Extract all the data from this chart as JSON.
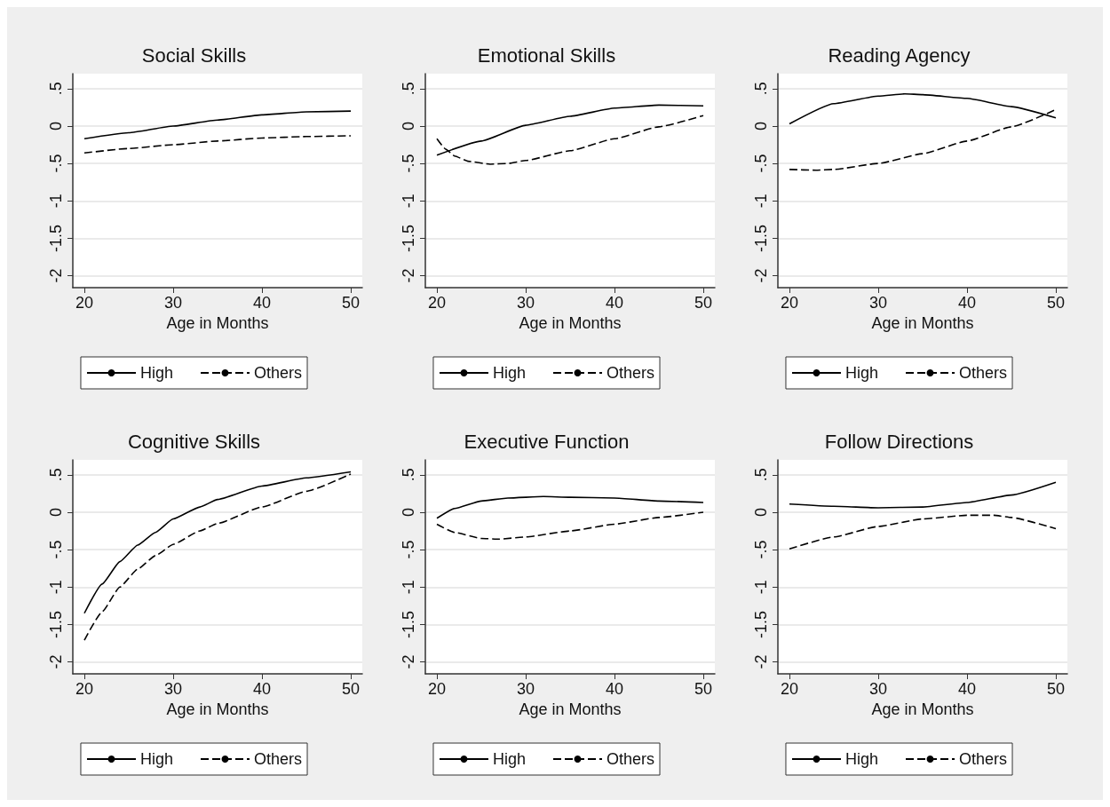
{
  "chart_data": [
    {
      "type": "line",
      "title": "Social Skills",
      "xlabel": "Age in Months",
      "xlim": [
        18.7,
        51.3
      ],
      "xticks": [
        20,
        30,
        40,
        50
      ],
      "ylim": [
        -2.16,
        0.7
      ],
      "yticks": [
        {
          "value": -2,
          "label": "-2"
        },
        {
          "value": -1.5,
          "label": "-1.5"
        },
        {
          "value": -1,
          "label": "-1"
        },
        {
          "value": -0.5,
          "label": "-.5"
        },
        {
          "value": 0,
          "label": "0"
        },
        {
          "value": 0.5,
          "label": ".5"
        }
      ],
      "grid": "y",
      "legend": "bottom",
      "marker": "none",
      "series": [
        {
          "name": "High",
          "color": "#000000",
          "line_style": "solid",
          "x": [
            20,
            25,
            30,
            35,
            40,
            45,
            50
          ],
          "values": [
            -0.17,
            -0.09,
            0.0,
            0.08,
            0.15,
            0.19,
            0.2
          ]
        },
        {
          "name": "Others",
          "color": "#000000",
          "line_style": "dashed",
          "x": [
            20,
            25,
            30,
            35,
            40,
            45,
            50
          ],
          "values": [
            -0.36,
            -0.3,
            -0.25,
            -0.2,
            -0.16,
            -0.14,
            -0.13
          ]
        }
      ]
    },
    {
      "type": "line",
      "title": "Emotional Skills",
      "xlabel": "Age in Months",
      "xlim": [
        18.7,
        51.3
      ],
      "xticks": [
        20,
        30,
        40,
        50
      ],
      "ylim": [
        -2.16,
        0.7
      ],
      "yticks": [
        {
          "value": -2,
          "label": "-2"
        },
        {
          "value": -1.5,
          "label": "-1.5"
        },
        {
          "value": -1,
          "label": "-1"
        },
        {
          "value": -0.5,
          "label": "-.5"
        },
        {
          "value": 0,
          "label": "0"
        },
        {
          "value": 0.5,
          "label": ".5"
        }
      ],
      "grid": "y",
      "legend": "bottom",
      "marker": "none",
      "series": [
        {
          "name": "High",
          "color": "#000000",
          "line_style": "solid",
          "x": [
            20,
            25,
            30,
            35,
            40,
            45,
            50
          ],
          "values": [
            -0.39,
            -0.2,
            0.01,
            0.13,
            0.24,
            0.28,
            0.27
          ]
        },
        {
          "name": "Others",
          "color": "#000000",
          "line_style": "dashed",
          "x": [
            20,
            21,
            22,
            23.5,
            26,
            28,
            30,
            35,
            40,
            45,
            50
          ],
          "values": [
            -0.17,
            -0.31,
            -0.4,
            -0.47,
            -0.51,
            -0.5,
            -0.46,
            -0.33,
            -0.17,
            -0.01,
            0.14
          ]
        }
      ]
    },
    {
      "type": "line",
      "title": "Reading Agency",
      "xlabel": "Age in Months",
      "xlim": [
        18.7,
        51.3
      ],
      "xticks": [
        20,
        30,
        40,
        50
      ],
      "ylim": [
        -2.16,
        0.7
      ],
      "yticks": [
        {
          "value": -2,
          "label": "-2"
        },
        {
          "value": -1.5,
          "label": "-1.5"
        },
        {
          "value": -1,
          "label": "-1"
        },
        {
          "value": -0.5,
          "label": "-.5"
        },
        {
          "value": 0,
          "label": "0"
        },
        {
          "value": 0.5,
          "label": ".5"
        }
      ],
      "grid": "y",
      "legend": "bottom",
      "marker": "none",
      "series": [
        {
          "name": "High",
          "color": "#000000",
          "line_style": "solid",
          "x": [
            20,
            25,
            30,
            33,
            35,
            40,
            45,
            50
          ],
          "values": [
            0.03,
            0.3,
            0.4,
            0.43,
            0.42,
            0.37,
            0.26,
            0.11
          ]
        },
        {
          "name": "Others",
          "color": "#000000",
          "line_style": "dashed",
          "x": [
            20,
            23,
            25,
            30,
            35,
            40,
            45,
            50
          ],
          "values": [
            -0.58,
            -0.59,
            -0.58,
            -0.5,
            -0.37,
            -0.2,
            -0.01,
            0.22
          ]
        }
      ]
    },
    {
      "type": "line",
      "title": "Cognitive Skills",
      "xlabel": "Age in Months",
      "xlim": [
        18.7,
        51.3
      ],
      "xticks": [
        20,
        30,
        40,
        50
      ],
      "ylim": [
        -2.16,
        0.7
      ],
      "yticks": [
        {
          "value": -2,
          "label": "-2"
        },
        {
          "value": -1.5,
          "label": "-1.5"
        },
        {
          "value": -1,
          "label": "-1"
        },
        {
          "value": -0.5,
          "label": "-.5"
        },
        {
          "value": 0,
          "label": "0"
        },
        {
          "value": 0.5,
          "label": ".5"
        }
      ],
      "grid": "y",
      "legend": "bottom",
      "marker": "none",
      "series": [
        {
          "name": "High",
          "color": "#000000",
          "line_style": "solid",
          "x": [
            20,
            22,
            24,
            26,
            28,
            30,
            33,
            35,
            40,
            45,
            50
          ],
          "values": [
            -1.35,
            -0.96,
            -0.66,
            -0.44,
            -0.27,
            -0.09,
            0.07,
            0.17,
            0.35,
            0.46,
            0.54
          ]
        },
        {
          "name": "Others",
          "color": "#000000",
          "line_style": "dashed",
          "x": [
            20,
            22,
            24,
            26,
            28,
            30,
            33,
            35,
            40,
            45,
            50
          ],
          "values": [
            -1.71,
            -1.33,
            -1.0,
            -0.76,
            -0.58,
            -0.43,
            -0.25,
            -0.15,
            0.07,
            0.28,
            0.51
          ]
        }
      ]
    },
    {
      "type": "line",
      "title": "Executive Function",
      "xlabel": "Age in Months",
      "xlim": [
        18.7,
        51.3
      ],
      "xticks": [
        20,
        30,
        40,
        50
      ],
      "ylim": [
        -2.16,
        0.7
      ],
      "yticks": [
        {
          "value": -2,
          "label": "-2"
        },
        {
          "value": -1.5,
          "label": "-1.5"
        },
        {
          "value": -1,
          "label": "-1"
        },
        {
          "value": -0.5,
          "label": "-.5"
        },
        {
          "value": 0,
          "label": "0"
        },
        {
          "value": 0.5,
          "label": ".5"
        }
      ],
      "grid": "y",
      "legend": "bottom",
      "marker": "none",
      "series": [
        {
          "name": "High",
          "color": "#000000",
          "line_style": "solid",
          "x": [
            20,
            22,
            25,
            28,
            32,
            35,
            40,
            45,
            50
          ],
          "values": [
            -0.08,
            0.05,
            0.15,
            0.19,
            0.21,
            0.2,
            0.19,
            0.15,
            0.13
          ]
        },
        {
          "name": "Others",
          "color": "#000000",
          "line_style": "dashed",
          "x": [
            20,
            22,
            25,
            27,
            30,
            35,
            40,
            45,
            50
          ],
          "values": [
            -0.16,
            -0.27,
            -0.35,
            -0.36,
            -0.33,
            -0.25,
            -0.16,
            -0.07,
            0.0
          ]
        }
      ]
    },
    {
      "type": "line",
      "title": "Follow Directions",
      "xlabel": "Age in Months",
      "xlim": [
        18.7,
        51.3
      ],
      "xticks": [
        20,
        30,
        40,
        50
      ],
      "ylim": [
        -2.16,
        0.7
      ],
      "yticks": [
        {
          "value": -2,
          "label": "-2"
        },
        {
          "value": -1.5,
          "label": "-1.5"
        },
        {
          "value": -1,
          "label": "-1"
        },
        {
          "value": -0.5,
          "label": "-.5"
        },
        {
          "value": 0,
          "label": "0"
        },
        {
          "value": 0.5,
          "label": ".5"
        }
      ],
      "grid": "y",
      "legend": "bottom",
      "marker": "none",
      "series": [
        {
          "name": "High",
          "color": "#000000",
          "line_style": "solid",
          "x": [
            20,
            25,
            30,
            35,
            40,
            45,
            50
          ],
          "values": [
            0.11,
            0.08,
            0.06,
            0.07,
            0.13,
            0.23,
            0.4
          ]
        },
        {
          "name": "Others",
          "color": "#000000",
          "line_style": "dashed",
          "x": [
            20,
            25,
            30,
            35,
            40,
            43,
            45,
            50
          ],
          "values": [
            -0.49,
            -0.33,
            -0.19,
            -0.09,
            -0.04,
            -0.04,
            -0.07,
            -0.22
          ]
        }
      ]
    }
  ]
}
